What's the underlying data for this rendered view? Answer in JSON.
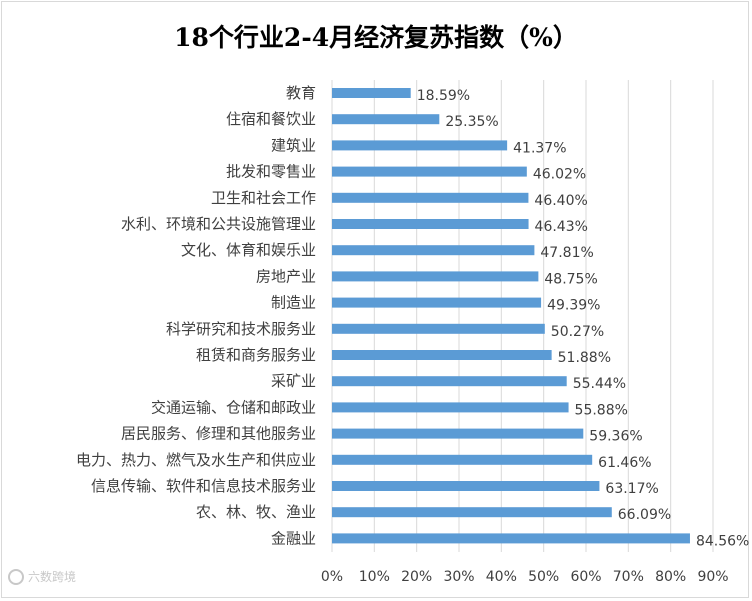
{
  "chart_data": {
    "type": "bar",
    "orientation": "horizontal",
    "title": "18个行业2-4月经济复苏指数（%）",
    "categories": [
      "教育",
      "住宿和餐饮业",
      "建筑业",
      "批发和零售业",
      "卫生和社会工作",
      "水利、环境和公共设施管理业",
      "文化、体育和娱乐业",
      "房地产业",
      "制造业",
      "科学研究和技术服务业",
      "租赁和商务服务业",
      "采矿业",
      "交通运输、仓储和邮政业",
      "居民服务、修理和其他服务业",
      "电力、热力、燃气及水生产和供应业",
      "信息传输、软件和信息技术服务业",
      "农、林、牧、渔业",
      "金融业"
    ],
    "values": [
      18.59,
      25.35,
      41.37,
      46.02,
      46.4,
      46.43,
      47.81,
      48.75,
      49.39,
      50.27,
      51.88,
      55.44,
      55.88,
      59.36,
      61.46,
      63.17,
      66.09,
      84.56
    ],
    "data_labels": [
      "18.59%",
      "25.35%",
      "41.37%",
      "46.02%",
      "46.40%",
      "46.43%",
      "47.81%",
      "48.75%",
      "49.39%",
      "50.27%",
      "51.88%",
      "55.44%",
      "55.88%",
      "59.36%",
      "61.46%",
      "63.17%",
      "66.09%",
      "84.56%"
    ],
    "xlim": [
      0,
      90
    ],
    "x_ticks": [
      "0%",
      "10%",
      "20%",
      "30%",
      "40%",
      "50%",
      "60%",
      "70%",
      "80%",
      "90%"
    ],
    "grid": true,
    "bar_color": "#5b9bd5",
    "grid_color": "#d9d9d9"
  },
  "watermark": "六数跨境"
}
